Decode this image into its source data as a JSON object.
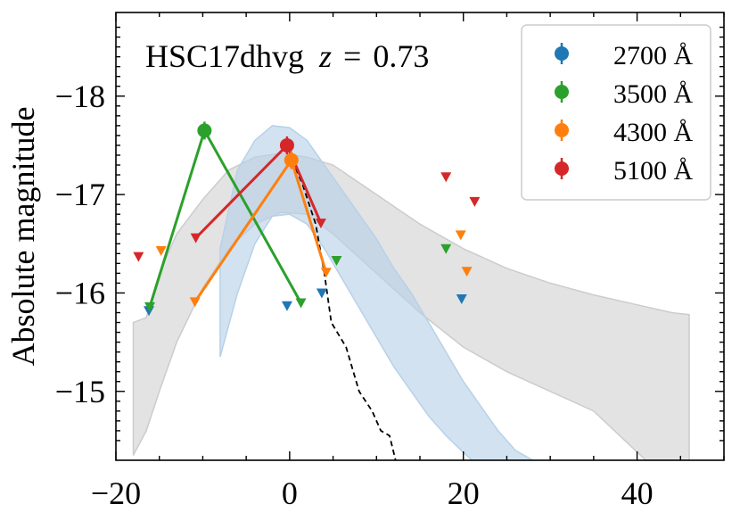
{
  "chart_data": {
    "type": "scatter",
    "title": "HSC17dhvg z = 0.73",
    "title_parts": {
      "name": "HSC17dhvg",
      "z_symbol": "z",
      "eq": "=",
      "z_value": "0.73"
    },
    "ylabel": "Absolute magnitude",
    "xlabel": "",
    "xlim": [
      -20,
      50
    ],
    "ylim": [
      -14.3,
      -18.85
    ],
    "y_inverted": true,
    "x_ticks": [
      -20,
      0,
      20,
      40
    ],
    "x_tick_labels": [
      "−20",
      "0",
      "20",
      "40"
    ],
    "y_ticks": [
      -18,
      -17,
      -16,
      -15
    ],
    "y_tick_labels": [
      "−18",
      "−17",
      "−16",
      "−15"
    ],
    "legend_position": "top-right",
    "series": [
      {
        "name": "2700 Å",
        "color": "#1f77b4",
        "detections": [],
        "upper_limits": [
          [
            -16.2,
            -15.82
          ],
          [
            -0.3,
            -15.87
          ],
          [
            3.7,
            -16.0
          ],
          [
            19.8,
            -15.94
          ]
        ]
      },
      {
        "name": "3500 Å",
        "color": "#2ca02c",
        "detections": [
          [
            -9.8,
            -17.65
          ]
        ],
        "upper_limits": [
          [
            -16.1,
            -15.86
          ],
          [
            1.3,
            -15.9
          ],
          [
            5.4,
            -16.33
          ],
          [
            18.0,
            -16.45
          ]
        ]
      },
      {
        "name": "4300 Å",
        "color": "#ff7f0e",
        "detections": [
          [
            0.2,
            -17.35
          ]
        ],
        "upper_limits": [
          [
            -14.8,
            -16.43
          ],
          [
            -10.9,
            -15.91
          ],
          [
            4.2,
            -16.21
          ],
          [
            19.7,
            -16.59
          ],
          [
            20.4,
            -16.22
          ]
        ]
      },
      {
        "name": "5100 Å",
        "color": "#d62728",
        "detections": [
          [
            -0.3,
            -17.5
          ]
        ],
        "upper_limits": [
          [
            -17.4,
            -16.37
          ],
          [
            -10.8,
            -16.56
          ],
          [
            3.6,
            -16.71
          ],
          [
            18.0,
            -17.18
          ],
          [
            21.3,
            -16.93
          ]
        ]
      }
    ],
    "connecting_lines": [
      {
        "series": "3500 Å",
        "points": [
          [
            -16.1,
            -15.86
          ],
          [
            -9.8,
            -17.65
          ],
          [
            1.3,
            -15.9
          ]
        ]
      },
      {
        "series": "4300 Å",
        "points": [
          [
            -10.9,
            -15.91
          ],
          [
            0.2,
            -17.35
          ],
          [
            4.2,
            -16.21
          ]
        ]
      },
      {
        "series": "5100 Å",
        "points": [
          [
            -10.8,
            -16.56
          ],
          [
            -0.3,
            -17.5
          ],
          [
            3.6,
            -16.71
          ]
        ]
      }
    ],
    "bands": [
      {
        "color": "#cccccc",
        "upper": [
          [
            -18.0,
            -15.7
          ],
          [
            -16.5,
            -15.75
          ],
          [
            -15.0,
            -16.2
          ],
          [
            -13.0,
            -16.6
          ],
          [
            -10.0,
            -16.95
          ],
          [
            -7.0,
            -17.25
          ],
          [
            -4.0,
            -17.38
          ],
          [
            -1.0,
            -17.42
          ],
          [
            2.0,
            -17.38
          ],
          [
            5.0,
            -17.3
          ],
          [
            10.0,
            -17.0
          ],
          [
            15.0,
            -16.7
          ],
          [
            20.0,
            -16.45
          ],
          [
            25.0,
            -16.25
          ],
          [
            30.0,
            -16.1
          ],
          [
            35.0,
            -15.98
          ],
          [
            40.0,
            -15.88
          ],
          [
            44.0,
            -15.8
          ],
          [
            46.0,
            -15.78
          ]
        ],
        "lower": [
          [
            -18.0,
            -14.35
          ],
          [
            -16.5,
            -14.6
          ],
          [
            -15.0,
            -15.0
          ],
          [
            -13.0,
            -15.5
          ],
          [
            -10.0,
            -16.05
          ],
          [
            -7.0,
            -16.45
          ],
          [
            -4.0,
            -16.7
          ],
          [
            -1.0,
            -16.82
          ],
          [
            2.0,
            -16.8
          ],
          [
            5.0,
            -16.6
          ],
          [
            10.0,
            -16.2
          ],
          [
            15.0,
            -15.8
          ],
          [
            20.0,
            -15.45
          ],
          [
            25.0,
            -15.2
          ],
          [
            30.0,
            -15.0
          ],
          [
            35.0,
            -14.8
          ],
          [
            38.0,
            -14.55
          ],
          [
            41.0,
            -14.3
          ],
          [
            46.0,
            -14.3
          ]
        ]
      },
      {
        "color": "#b7d1e8",
        "upper": [
          [
            -8.0,
            -16.45
          ],
          [
            -6.0,
            -17.25
          ],
          [
            -4.0,
            -17.55
          ],
          [
            -2.0,
            -17.7
          ],
          [
            0.0,
            -17.68
          ],
          [
            2.0,
            -17.55
          ],
          [
            4.0,
            -17.3
          ],
          [
            6.0,
            -17.05
          ],
          [
            8.0,
            -16.8
          ],
          [
            10.0,
            -16.55
          ],
          [
            12.0,
            -16.25
          ],
          [
            14.0,
            -16.0
          ],
          [
            16.0,
            -15.7
          ],
          [
            18.0,
            -15.4
          ],
          [
            20.0,
            -15.1
          ],
          [
            22.0,
            -14.85
          ],
          [
            24.0,
            -14.6
          ],
          [
            26.0,
            -14.4
          ],
          [
            28.0,
            -14.3
          ]
        ],
        "lower": [
          [
            -8.0,
            -15.35
          ],
          [
            -6.0,
            -16.0
          ],
          [
            -4.0,
            -16.5
          ],
          [
            -2.0,
            -16.78
          ],
          [
            0.0,
            -16.8
          ],
          [
            2.0,
            -16.7
          ],
          [
            4.0,
            -16.45
          ],
          [
            6.0,
            -16.15
          ],
          [
            8.0,
            -15.85
          ],
          [
            10.0,
            -15.55
          ],
          [
            12.0,
            -15.25
          ],
          [
            14.0,
            -15.0
          ],
          [
            16.0,
            -14.75
          ],
          [
            18.0,
            -14.55
          ],
          [
            20.0,
            -14.38
          ],
          [
            21.0,
            -14.3
          ]
        ]
      }
    ],
    "dashed_line": {
      "color": "#000000",
      "points": [
        [
          0.3,
          -17.35
        ],
        [
          1.5,
          -17.1
        ],
        [
          3.0,
          -16.7
        ],
        [
          4.0,
          -16.2
        ],
        [
          4.8,
          -15.7
        ],
        [
          6.5,
          -15.45
        ],
        [
          8.0,
          -15.0
        ],
        [
          9.5,
          -14.8
        ],
        [
          10.5,
          -14.6
        ],
        [
          11.5,
          -14.55
        ],
        [
          12.2,
          -14.3
        ]
      ]
    }
  }
}
